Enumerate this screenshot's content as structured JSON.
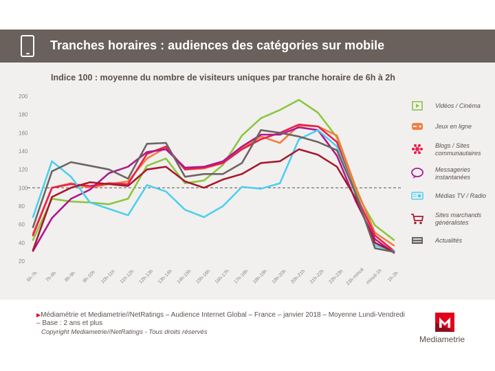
{
  "header": {
    "title": "Tranches horaires : audiences des catégories sur mobile"
  },
  "chart_data": {
    "type": "line",
    "title": "Indice 100 : moyenne du nombre de visiteurs uniques par tranche horaire de 6h à 2h",
    "ylim": [
      20,
      200
    ],
    "yticks": [
      20,
      40,
      60,
      80,
      100,
      120,
      140,
      160,
      180,
      200
    ],
    "reference_line": 100,
    "legend_position": "right",
    "categories": [
      "6h-7h",
      "7h-8h",
      "8h-9h",
      "9h-10h",
      "10h-11h",
      "11h-12h",
      "12h-13h",
      "13h-14h",
      "14h-15h",
      "15h-16h",
      "16h-17h",
      "17h-18h",
      "18h-19h",
      "19h-20h",
      "20h-21h",
      "21h-22h",
      "22h-23h",
      "23h-minuit",
      "minuit-1h",
      "1h-2h"
    ],
    "series": [
      {
        "name": "Vidéos / Cinéma",
        "color": "#8cc63f",
        "icon": "video-play-icon",
        "values": [
          43,
          88,
          85,
          84,
          82,
          88,
          124,
          132,
          105,
          108,
          125,
          157,
          176,
          185,
          196,
          182,
          155,
          95,
          59,
          43
        ]
      },
      {
        "name": "Jeux en ligne",
        "color": "#f47c3c",
        "icon": "gamepad-icon",
        "values": [
          50,
          100,
          105,
          100,
          104,
          107,
          132,
          144,
          120,
          121,
          127,
          143,
          156,
          149,
          168,
          167,
          157,
          100,
          51,
          37
        ]
      },
      {
        "name": "Blogs / Sites communautaires",
        "color": "#e8204f",
        "icon": "network-icon",
        "values": [
          48,
          100,
          104,
          102,
          105,
          104,
          137,
          145,
          120,
          122,
          127,
          142,
          153,
          160,
          169,
          167,
          150,
          92,
          48,
          31
        ]
      },
      {
        "name": "Messageries instantanées",
        "color": "#b0188e",
        "icon": "chat-bubble-icon",
        "values": [
          31,
          67,
          88,
          98,
          116,
          123,
          139,
          142,
          122,
          123,
          129,
          145,
          158,
          158,
          166,
          163,
          135,
          85,
          44,
          29
        ]
      },
      {
        "name": "Médias TV / Radio",
        "color": "#4dcfee",
        "icon": "radio-icon",
        "values": [
          68,
          129,
          112,
          84,
          77,
          70,
          103,
          96,
          76,
          68,
          80,
          101,
          99,
          105,
          153,
          163,
          145,
          92,
          37,
          31
        ]
      },
      {
        "name": "Sites marchands généralistes",
        "color": "#a6192e",
        "icon": "shopping-cart-icon",
        "values": [
          32,
          90,
          100,
          106,
          104,
          102,
          120,
          123,
          107,
          100,
          109,
          115,
          127,
          129,
          142,
          136,
          123,
          88,
          40,
          30
        ]
      },
      {
        "name": "Actualités",
        "color": "#6d6462",
        "icon": "newspaper-icon",
        "values": [
          57,
          118,
          128,
          124,
          120,
          110,
          148,
          149,
          112,
          115,
          115,
          127,
          163,
          160,
          156,
          150,
          141,
          93,
          34,
          30
        ]
      }
    ]
  },
  "footer": {
    "source": "Médiamétrie et Mediametrie//NetRatings – Audience Internet Global – France – janvier 2018 – Moyenne Lundi-Vendredi – Base : 2 ans et plus",
    "copyright": "Copyright Mediametrie//NetRatings - Tous droits réservés",
    "brand": "Mediametrie",
    "brand_colors": {
      "red": "#e2001a",
      "dark": "#8c0f1d"
    }
  }
}
